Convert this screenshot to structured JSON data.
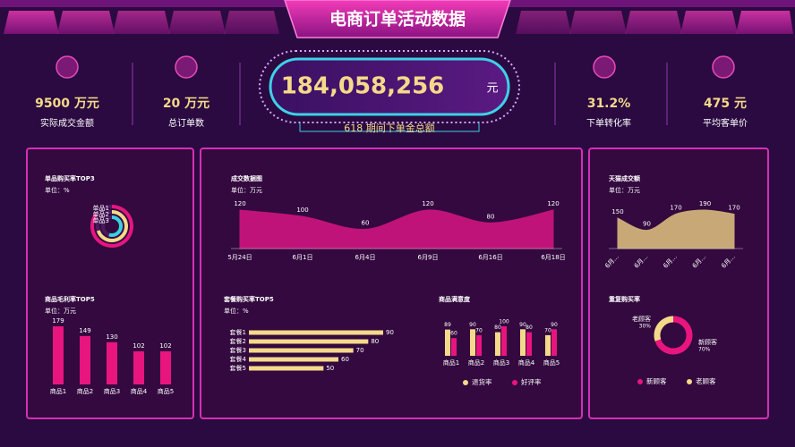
{
  "header": {
    "title": "电商订单活动数据"
  },
  "kpis": [
    {
      "value": "9500 万元",
      "label": "实际成交金额"
    },
    {
      "value": "20 万元",
      "label": "总订单数"
    },
    {
      "value": "31.2%",
      "label": "下单转化率"
    },
    {
      "value": "475 元",
      "label": "平均客单价"
    }
  ],
  "center": {
    "value": "184,058,256",
    "unit": "元",
    "label": "618 期间下单金总额"
  },
  "chart_data": [
    {
      "type": "radial_bar",
      "title": "单品购买率TOP3",
      "subtitle": "单位：%",
      "categories": [
        "单品1",
        "单品2",
        "单品3"
      ],
      "values": [
        85,
        70,
        55
      ],
      "colors": [
        "#e8157f",
        "#f5d98a",
        "#3ad0e0"
      ]
    },
    {
      "type": "bar",
      "title": "商品毛利率TOP5",
      "subtitle": "单位：万元",
      "categories": [
        "商品1",
        "商品2",
        "商品3",
        "商品4",
        "商品5"
      ],
      "values": [
        179,
        149,
        130,
        102,
        102
      ],
      "color": "#e8157f"
    },
    {
      "type": "area",
      "title": "成交数据图",
      "subtitle": "单位：万元",
      "categories": [
        "5月24日",
        "6月1日",
        "6月4日",
        "6月9日",
        "6月16日",
        "6月18日"
      ],
      "values": [
        120,
        100,
        60,
        120,
        80,
        120
      ],
      "color": "#c0137a"
    },
    {
      "type": "hbar",
      "title": "套餐购买率TOP5",
      "subtitle": "单位：%",
      "categories": [
        "套餐1",
        "套餐2",
        "套餐3",
        "套餐4",
        "套餐5"
      ],
      "values": [
        90,
        80,
        70,
        60,
        50
      ],
      "color": "#f5d98a"
    },
    {
      "type": "grouped_bar",
      "title": "商品满意度",
      "categories": [
        "商品1",
        "商品2",
        "商品3",
        "商品4",
        "商品5"
      ],
      "series": [
        {
          "name": "退货率",
          "color": "#f5d98a",
          "values": [
            89,
            90,
            80,
            90,
            70
          ]
        },
        {
          "name": "好评率",
          "color": "#e8157f",
          "values": [
            60,
            70,
            100,
            80,
            90
          ]
        }
      ]
    },
    {
      "type": "area",
      "title": "天猫成交额",
      "subtitle": "单位：万元",
      "categories": [
        "6月...",
        "6月...",
        "6月...",
        "6月...",
        "6月..."
      ],
      "values": [
        150,
        90,
        170,
        190,
        170
      ],
      "color": "#c9a877"
    },
    {
      "type": "donut",
      "title": "重复购买率",
      "categories": [
        "新顾客",
        "老顾客"
      ],
      "values": [
        70,
        30
      ],
      "value_labels": [
        "70%",
        "30%"
      ],
      "colors": [
        "#e8157f",
        "#f5d98a"
      ]
    }
  ]
}
